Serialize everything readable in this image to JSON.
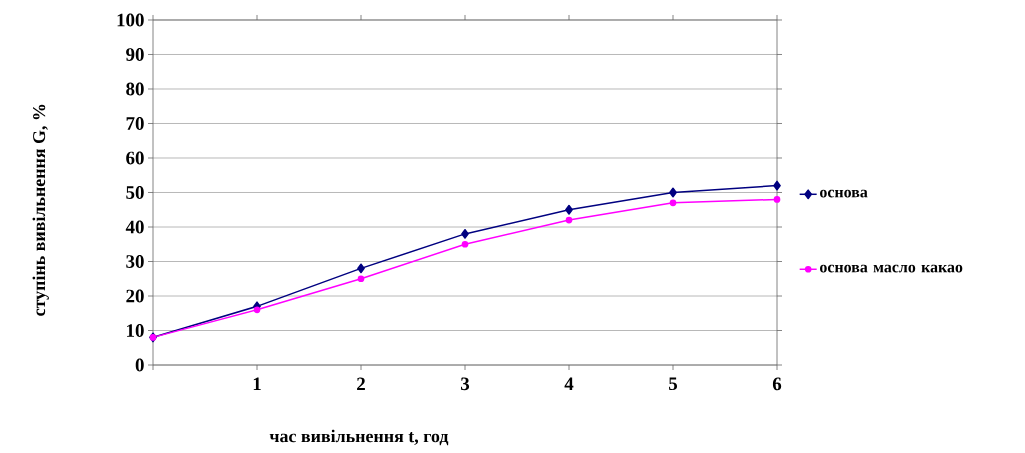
{
  "chart_data": {
    "type": "line",
    "xlabel": "час вивільнення     t, год",
    "ylabel": "ступінь вивільнення     G, %",
    "x": [
      0,
      1,
      2,
      3,
      4,
      5,
      6
    ],
    "xlim": [
      0,
      6
    ],
    "xticks": [
      {
        "value": 0,
        "label": null
      },
      1,
      2,
      3,
      4,
      5,
      6
    ],
    "ylim": [
      0,
      100
    ],
    "yticks": [
      0,
      10,
      20,
      30,
      40,
      50,
      60,
      70,
      80,
      90,
      100
    ],
    "grid": "y",
    "legend": "right",
    "line_style": "solid",
    "series": [
      {
        "name": "основа",
        "color": "#000080",
        "marker": "diamond",
        "values": [
          8,
          17,
          28,
          38,
          45,
          50,
          52
        ]
      },
      {
        "name": "основа масло какао",
        "color": "#ff00ff",
        "marker": "circle",
        "values": [
          8,
          16,
          25,
          35,
          42,
          47,
          48
        ]
      }
    ]
  }
}
